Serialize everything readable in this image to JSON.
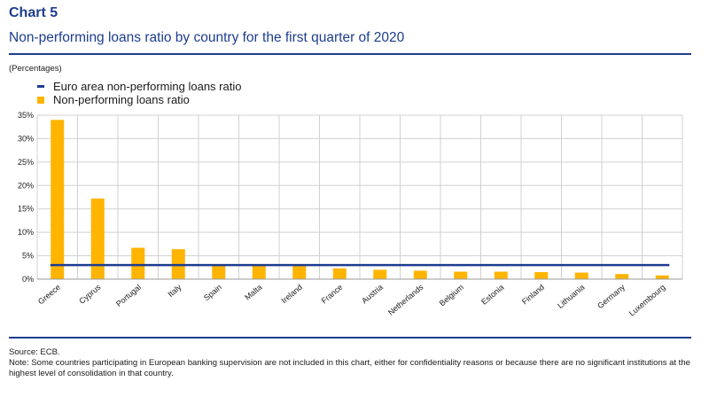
{
  "header": {
    "chart_number": "Chart 5",
    "title": "Non-performing loans ratio by country for the first quarter of 2020",
    "units": "(Percentages)"
  },
  "legend": {
    "line_label": "Euro area non-performing loans ratio",
    "bar_label": "Non-performing loans ratio"
  },
  "footer": {
    "source": "Source: ECB.",
    "note": "Note: Some countries participating in European banking supervision are not included in this chart, either for confidentiality reasons or because there are no significant institutions at the highest level of consolidation in that country."
  },
  "colors": {
    "bar": "#ffb400",
    "line": "#1d3d8f",
    "grid": "#d0d0d0",
    "accent": "#1d3d8f"
  },
  "chart_data": {
    "type": "bar",
    "categories": [
      "Greece",
      "Cyprus",
      "Portugal",
      "Italy",
      "Spain",
      "Malta",
      "Ireland",
      "France",
      "Austria",
      "Netherlands",
      "Belgium",
      "Estonia",
      "Finland",
      "Lithuania",
      "Germany",
      "Luxembourg"
    ],
    "series": [
      {
        "name": "Non-performing loans ratio",
        "type": "bar",
        "values": [
          34.0,
          17.2,
          6.7,
          6.4,
          2.9,
          2.9,
          2.9,
          2.3,
          2.0,
          1.8,
          1.6,
          1.6,
          1.5,
          1.4,
          1.1,
          0.8
        ]
      },
      {
        "name": "Euro area non-performing loans ratio",
        "type": "line",
        "value": 3.0
      }
    ],
    "yticks": [
      "0%",
      "5%",
      "10%",
      "15%",
      "20%",
      "25%",
      "30%",
      "35%"
    ],
    "ylim": [
      0,
      35
    ],
    "grid": true,
    "legend_position": "top-left"
  }
}
